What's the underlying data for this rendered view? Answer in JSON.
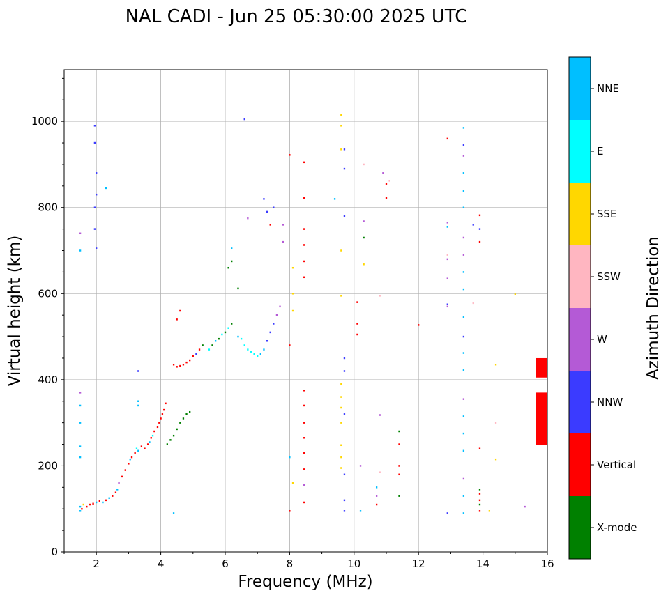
{
  "chart_data": {
    "type": "scatter",
    "title": "NAL CADI - Jun 25 05:30:00 2025 UTC",
    "xlabel": "Frequency (MHz)",
    "ylabel": "Virtual height (km)",
    "xlim": [
      1,
      16
    ],
    "ylim": [
      0,
      1120
    ],
    "xticks": [
      "2",
      "4",
      "6",
      "8",
      "10",
      "12",
      "14",
      "16"
    ],
    "xtick_values": [
      2,
      4,
      6,
      8,
      10,
      12,
      14,
      16
    ],
    "yticks": [
      "0",
      "200",
      "400",
      "600",
      "800",
      "1000"
    ],
    "ytick_values": [
      0,
      200,
      400,
      600,
      800,
      1000
    ],
    "grid": true,
    "colorbar": {
      "label": "Azimuth Direction",
      "categories": [
        {
          "name": "X-mode",
          "color": "#008000"
        },
        {
          "name": "Vertical",
          "color": "#ff0000"
        },
        {
          "name": "NNW",
          "color": "#3b3bff"
        },
        {
          "name": "W",
          "color": "#b45ad6"
        },
        {
          "name": "SSW",
          "color": "#ffb6c1"
        },
        {
          "name": "SSE",
          "color": "#ffd700"
        },
        {
          "name": "E",
          "color": "#00ffff"
        },
        {
          "name": "NNE",
          "color": "#00bfff"
        }
      ]
    },
    "echo_cells": {
      "cell_width_mhz": 0.05,
      "cell_height_km": 4,
      "points": [
        [
          1.5,
          95,
          "NNE"
        ],
        [
          1.5,
          105,
          "NNE"
        ],
        [
          1.55,
          100,
          "Vertical"
        ],
        [
          1.6,
          110,
          "SSE"
        ],
        [
          1.7,
          105,
          "Vertical"
        ],
        [
          1.8,
          110,
          "Vertical"
        ],
        [
          1.9,
          112,
          "Vertical"
        ],
        [
          2.0,
          115,
          "NNE"
        ],
        [
          2.1,
          118,
          "Vertical"
        ],
        [
          2.2,
          115,
          "NNE"
        ],
        [
          2.3,
          120,
          "Vertical"
        ],
        [
          2.4,
          125,
          "NNE"
        ],
        [
          2.5,
          130,
          "Vertical"
        ],
        [
          2.6,
          138,
          "Vertical"
        ],
        [
          2.65,
          145,
          "NNE"
        ],
        [
          2.7,
          160,
          "W"
        ],
        [
          2.8,
          175,
          "Vertical"
        ],
        [
          2.9,
          190,
          "Vertical"
        ],
        [
          3.0,
          205,
          "Vertical"
        ],
        [
          3.05,
          215,
          "NNE"
        ],
        [
          3.1,
          220,
          "Vertical"
        ],
        [
          3.2,
          230,
          "Vertical"
        ],
        [
          3.25,
          240,
          "E"
        ],
        [
          3.3,
          235,
          "NNE"
        ],
        [
          3.4,
          245,
          "Vertical"
        ],
        [
          3.5,
          240,
          "Vertical"
        ],
        [
          3.6,
          250,
          "Vertical"
        ],
        [
          3.65,
          255,
          "NNE"
        ],
        [
          3.7,
          265,
          "Vertical"
        ],
        [
          3.75,
          270,
          "E"
        ],
        [
          3.8,
          280,
          "Vertical"
        ],
        [
          3.9,
          290,
          "Vertical"
        ],
        [
          3.95,
          300,
          "Vertical"
        ],
        [
          4.0,
          310,
          "Vertical"
        ],
        [
          4.05,
          320,
          "Vertical"
        ],
        [
          4.1,
          330,
          "Vertical"
        ],
        [
          4.15,
          345,
          "Vertical"
        ],
        [
          4.2,
          250,
          "X-mode"
        ],
        [
          4.3,
          260,
          "X-mode"
        ],
        [
          4.4,
          270,
          "X-mode"
        ],
        [
          4.5,
          285,
          "X-mode"
        ],
        [
          4.6,
          300,
          "X-mode"
        ],
        [
          4.7,
          310,
          "X-mode"
        ],
        [
          4.8,
          320,
          "X-mode"
        ],
        [
          4.9,
          325,
          "X-mode"
        ],
        [
          4.4,
          435,
          "Vertical"
        ],
        [
          4.5,
          430,
          "Vertical"
        ],
        [
          4.6,
          432,
          "Vertical"
        ],
        [
          4.7,
          435,
          "Vertical"
        ],
        [
          4.8,
          440,
          "Vertical"
        ],
        [
          4.9,
          445,
          "Vertical"
        ],
        [
          5.0,
          455,
          "Vertical"
        ],
        [
          5.1,
          460,
          "NNW"
        ],
        [
          5.2,
          470,
          "Vertical"
        ],
        [
          5.3,
          480,
          "X-mode"
        ],
        [
          5.5,
          470,
          "E"
        ],
        [
          5.6,
          480,
          "X-mode"
        ],
        [
          5.7,
          490,
          "NNE"
        ],
        [
          5.8,
          495,
          "X-mode"
        ],
        [
          5.9,
          505,
          "E"
        ],
        [
          6.0,
          510,
          "X-mode"
        ],
        [
          6.1,
          520,
          "E"
        ],
        [
          6.2,
          530,
          "X-mode"
        ],
        [
          6.4,
          500,
          "NNE"
        ],
        [
          6.5,
          495,
          "E"
        ],
        [
          6.6,
          480,
          "E"
        ],
        [
          6.7,
          470,
          "E"
        ],
        [
          6.8,
          465,
          "E"
        ],
        [
          6.9,
          460,
          "E"
        ],
        [
          7.0,
          455,
          "E"
        ],
        [
          7.1,
          460,
          "NNE"
        ],
        [
          7.2,
          470,
          "NNE"
        ],
        [
          7.3,
          490,
          "NNW"
        ],
        [
          7.4,
          510,
          "NNW"
        ],
        [
          7.5,
          530,
          "NNW"
        ],
        [
          7.6,
          550,
          "W"
        ],
        [
          7.7,
          570,
          "W"
        ],
        [
          1.5,
          300,
          "NNE"
        ],
        [
          1.5,
          340,
          "NNE"
        ],
        [
          1.5,
          370,
          "W"
        ],
        [
          1.5,
          245,
          "NNE"
        ],
        [
          1.5,
          220,
          "NNE"
        ],
        [
          1.5,
          700,
          "NNE"
        ],
        [
          1.5,
          740,
          "W"
        ],
        [
          1.95,
          750,
          "NNW"
        ],
        [
          1.95,
          800,
          "NNW"
        ],
        [
          1.95,
          950,
          "NNW"
        ],
        [
          1.95,
          990,
          "NNW"
        ],
        [
          2.0,
          880,
          "NNW"
        ],
        [
          2.0,
          830,
          "NNW"
        ],
        [
          2.0,
          705,
          "NNW"
        ],
        [
          2.3,
          845,
          "NNE"
        ],
        [
          3.3,
          420,
          "NNW"
        ],
        [
          3.3,
          350,
          "NNE"
        ],
        [
          3.3,
          340,
          "NNE"
        ],
        [
          4.4,
          90,
          "NNE"
        ],
        [
          4.5,
          540,
          "Vertical"
        ],
        [
          4.6,
          560,
          "Vertical"
        ],
        [
          6.1,
          660,
          "X-mode"
        ],
        [
          6.2,
          675,
          "X-mode"
        ],
        [
          6.2,
          705,
          "NNE"
        ],
        [
          6.4,
          612,
          "X-mode"
        ],
        [
          6.6,
          1005,
          "NNW"
        ],
        [
          6.7,
          775,
          "W"
        ],
        [
          7.2,
          820,
          "NNW"
        ],
        [
          7.3,
          790,
          "NNW"
        ],
        [
          7.4,
          760,
          "Vertical"
        ],
        [
          7.5,
          800,
          "NNW"
        ],
        [
          7.8,
          720,
          "W"
        ],
        [
          7.8,
          760,
          "W"
        ],
        [
          8.0,
          480,
          "Vertical"
        ],
        [
          8.0,
          922,
          "Vertical"
        ],
        [
          8.1,
          660,
          "SSE"
        ],
        [
          8.1,
          600,
          "SSE"
        ],
        [
          8.1,
          560,
          "SSE"
        ],
        [
          8.0,
          220,
          "NNE"
        ],
        [
          8.1,
          160,
          "SSE"
        ],
        [
          8.0,
          95,
          "Vertical"
        ],
        [
          8.45,
          905,
          "Vertical"
        ],
        [
          8.45,
          822,
          "Vertical"
        ],
        [
          8.45,
          750,
          "Vertical"
        ],
        [
          8.45,
          713,
          "Vertical"
        ],
        [
          8.45,
          675,
          "Vertical"
        ],
        [
          8.45,
          638,
          "Vertical"
        ],
        [
          8.45,
          375,
          "Vertical"
        ],
        [
          8.45,
          340,
          "Vertical"
        ],
        [
          8.45,
          300,
          "Vertical"
        ],
        [
          8.45,
          265,
          "Vertical"
        ],
        [
          8.45,
          230,
          "Vertical"
        ],
        [
          8.45,
          192,
          "Vertical"
        ],
        [
          8.45,
          155,
          "W"
        ],
        [
          8.45,
          115,
          "Vertical"
        ],
        [
          9.6,
          700,
          "SSE"
        ],
        [
          9.6,
          595,
          "SSE"
        ],
        [
          9.6,
          390,
          "SSE"
        ],
        [
          9.6,
          360,
          "SSE"
        ],
        [
          9.6,
          335,
          "SSE"
        ],
        [
          9.6,
          300,
          "SSE"
        ],
        [
          9.6,
          248,
          "SSE"
        ],
        [
          9.6,
          220,
          "SSE"
        ],
        [
          9.6,
          195,
          "SSE"
        ],
        [
          9.6,
          1015,
          "SSE"
        ],
        [
          9.6,
          990,
          "SSE"
        ],
        [
          9.6,
          935,
          "SSE"
        ],
        [
          9.4,
          820,
          "NNE"
        ],
        [
          9.7,
          935,
          "NNW"
        ],
        [
          9.7,
          890,
          "NNW"
        ],
        [
          9.7,
          780,
          "NNW"
        ],
        [
          9.7,
          450,
          "NNW"
        ],
        [
          9.7,
          420,
          "NNW"
        ],
        [
          9.7,
          320,
          "NNW"
        ],
        [
          9.7,
          180,
          "NNW"
        ],
        [
          9.7,
          120,
          "NNW"
        ],
        [
          9.7,
          95,
          "NNW"
        ],
        [
          10.1,
          580,
          "Vertical"
        ],
        [
          10.1,
          530,
          "Vertical"
        ],
        [
          10.1,
          505,
          "Vertical"
        ],
        [
          10.2,
          200,
          "W"
        ],
        [
          10.2,
          95,
          "NNE"
        ],
        [
          10.3,
          900,
          "SSW"
        ],
        [
          10.3,
          768,
          "W"
        ],
        [
          10.3,
          730,
          "X-mode"
        ],
        [
          10.3,
          668,
          "SSE"
        ],
        [
          10.7,
          150,
          "NNE"
        ],
        [
          10.7,
          130,
          "W"
        ],
        [
          10.7,
          110,
          "Vertical"
        ],
        [
          10.8,
          595,
          "SSW"
        ],
        [
          10.8,
          318,
          "W"
        ],
        [
          10.8,
          185,
          "SSW"
        ],
        [
          10.9,
          880,
          "W"
        ],
        [
          11.0,
          855,
          "Vertical"
        ],
        [
          11.0,
          822,
          "Vertical"
        ],
        [
          11.1,
          862,
          "SSW"
        ],
        [
          11.4,
          280,
          "X-mode"
        ],
        [
          11.4,
          250,
          "Vertical"
        ],
        [
          11.4,
          200,
          "Vertical"
        ],
        [
          11.4,
          180,
          "Vertical"
        ],
        [
          11.4,
          130,
          "X-mode"
        ],
        [
          12.0,
          527,
          "Vertical"
        ],
        [
          12.9,
          960,
          "Vertical"
        ],
        [
          12.9,
          765,
          "W"
        ],
        [
          12.9,
          755,
          "NNE"
        ],
        [
          12.9,
          690,
          "SSW"
        ],
        [
          12.9,
          680,
          "W"
        ],
        [
          12.9,
          635,
          "W"
        ],
        [
          12.9,
          575,
          "NNW"
        ],
        [
          12.9,
          570,
          "W"
        ],
        [
          12.9,
          90,
          "NNW"
        ],
        [
          13.4,
          985,
          "NNE"
        ],
        [
          13.4,
          945,
          "NNW"
        ],
        [
          13.4,
          920,
          "W"
        ],
        [
          13.4,
          880,
          "NNE"
        ],
        [
          13.4,
          838,
          "NNE"
        ],
        [
          13.4,
          800,
          "NNE"
        ],
        [
          13.4,
          730,
          "W"
        ],
        [
          13.4,
          690,
          "W"
        ],
        [
          13.4,
          650,
          "NNE"
        ],
        [
          13.4,
          610,
          "NNE"
        ],
        [
          13.4,
          545,
          "NNE"
        ],
        [
          13.4,
          500,
          "NNW"
        ],
        [
          13.4,
          462,
          "NNE"
        ],
        [
          13.4,
          422,
          "NNE"
        ],
        [
          13.4,
          355,
          "W"
        ],
        [
          13.4,
          315,
          "NNE"
        ],
        [
          13.4,
          275,
          "NNE"
        ],
        [
          13.4,
          235,
          "NNE"
        ],
        [
          13.4,
          170,
          "W"
        ],
        [
          13.4,
          130,
          "NNE"
        ],
        [
          13.4,
          90,
          "NNE"
        ],
        [
          13.7,
          760,
          "NNW"
        ],
        [
          13.7,
          578,
          "SSW"
        ],
        [
          13.9,
          782,
          "Vertical"
        ],
        [
          13.9,
          750,
          "NNW"
        ],
        [
          13.9,
          720,
          "Vertical"
        ],
        [
          13.9,
          240,
          "Vertical"
        ],
        [
          13.9,
          145,
          "X-mode"
        ],
        [
          13.9,
          135,
          "Vertical"
        ],
        [
          13.9,
          120,
          "Vertical"
        ],
        [
          13.9,
          110,
          "X-mode"
        ],
        [
          13.9,
          95,
          "Vertical"
        ],
        [
          14.2,
          95,
          "SSE"
        ],
        [
          14.4,
          435,
          "SSE"
        ],
        [
          14.4,
          300,
          "SSW"
        ],
        [
          14.4,
          215,
          "SSE"
        ],
        [
          15.0,
          598,
          "SSE"
        ],
        [
          15.3,
          105,
          "W"
        ]
      ],
      "vertical_echo_bars": [
        {
          "freq_mhz": [
            15.65,
            16.0
          ],
          "height_km": [
            405,
            450
          ],
          "azimuth": "Vertical"
        },
        {
          "freq_mhz": [
            15.65,
            16.0
          ],
          "height_km": [
            248,
            370
          ],
          "azimuth": "Vertical"
        }
      ]
    }
  }
}
